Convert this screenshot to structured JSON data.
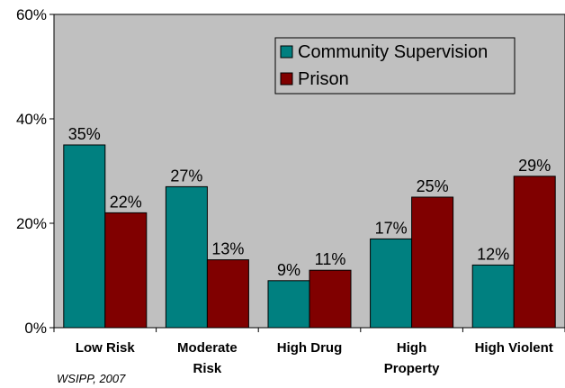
{
  "source_note": "WSIPP, 2007",
  "chart_data": {
    "type": "bar",
    "categories": [
      [
        "Low Risk"
      ],
      [
        "Moderate",
        "Risk"
      ],
      [
        "High Drug"
      ],
      [
        "High",
        "Property"
      ],
      [
        "High Violent"
      ]
    ],
    "series": [
      {
        "name": "Community Supervision",
        "color": "#008080",
        "values": [
          35,
          27,
          9,
          17,
          12
        ],
        "labels": [
          "35%",
          "27%",
          "9%",
          "17%",
          "12%"
        ]
      },
      {
        "name": "Prison",
        "color": "#800000",
        "values": [
          22,
          13,
          11,
          25,
          29
        ],
        "labels": [
          "22%",
          "13%",
          "11%",
          "25%",
          "29%"
        ]
      }
    ],
    "ylim": [
      0,
      60
    ],
    "yticks": [
      0,
      20,
      40,
      60
    ],
    "ytick_labels": [
      "0%",
      "20%",
      "40%",
      "60%"
    ],
    "title": "",
    "xlabel": "",
    "ylabel": "",
    "plot_background": "#c0c0c0",
    "grid": false,
    "legend_position": "top-right"
  }
}
